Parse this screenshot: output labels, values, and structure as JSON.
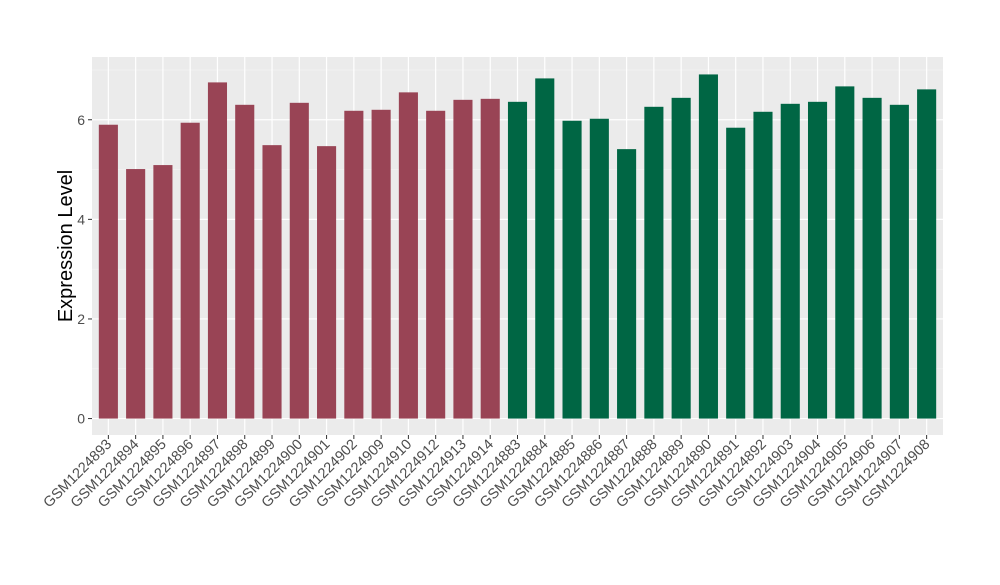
{
  "chart_data": {
    "type": "bar",
    "title": "",
    "xlabel": "",
    "ylabel": "Expression Level",
    "ylim": [
      -0.33,
      7.26
    ],
    "yticks": [
      0,
      2,
      4,
      6
    ],
    "grid": true,
    "legend": "none",
    "categories": [
      "GSM1224893",
      "GSM1224894",
      "GSM1224895",
      "GSM1224896",
      "GSM1224897",
      "GSM1224898",
      "GSM1224899",
      "GSM1224900",
      "GSM1224901",
      "GSM1224902",
      "GSM1224909",
      "GSM1224910",
      "GSM1224912",
      "GSM1224913",
      "GSM1224914",
      "GSM1224883",
      "GSM1224884",
      "GSM1224885",
      "GSM1224886",
      "GSM1224887",
      "GSM1224888",
      "GSM1224889",
      "GSM1224890",
      "GSM1224891",
      "GSM1224892",
      "GSM1224903",
      "GSM1224904",
      "GSM1224905",
      "GSM1224906",
      "GSM1224907",
      "GSM1224908"
    ],
    "values": [
      5.9,
      5.01,
      5.09,
      5.94,
      6.75,
      6.3,
      5.49,
      6.34,
      5.47,
      6.18,
      6.2,
      6.55,
      6.18,
      6.4,
      6.42,
      6.36,
      6.83,
      5.98,
      6.02,
      5.41,
      6.26,
      6.44,
      6.91,
      5.84,
      6.16,
      6.32,
      6.36,
      6.67,
      6.44,
      6.3,
      6.61
    ],
    "groups": [
      "a",
      "a",
      "a",
      "a",
      "a",
      "a",
      "a",
      "a",
      "a",
      "a",
      "a",
      "a",
      "a",
      "a",
      "a",
      "b",
      "b",
      "b",
      "b",
      "b",
      "b",
      "b",
      "b",
      "b",
      "b",
      "b",
      "b",
      "b",
      "b",
      "b",
      "b"
    ],
    "colors": {
      "a": "#994455",
      "b": "#006644"
    }
  }
}
